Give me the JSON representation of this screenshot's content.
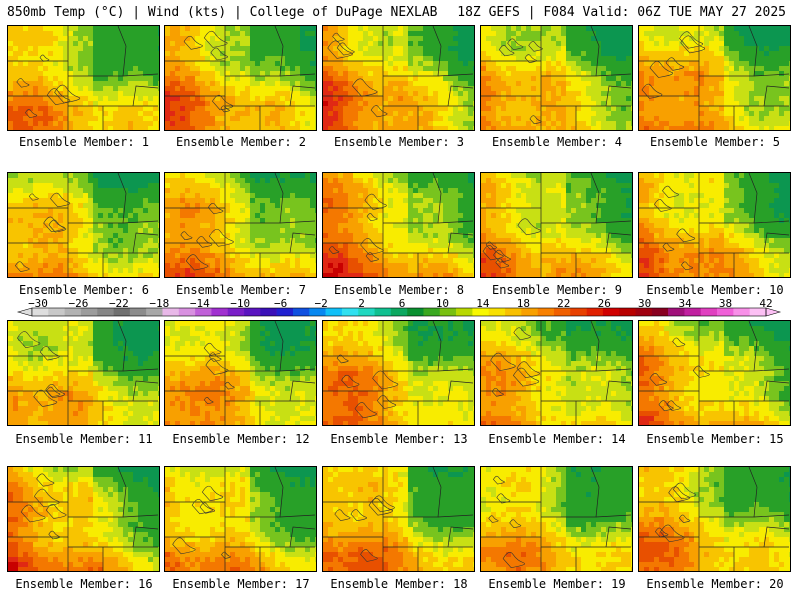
{
  "header": {
    "left": "850mb Temp (°C) | Wind (kts) | College of DuPage NEXLAB",
    "right": "18Z GEFS | F084 Valid: 06Z TUE MAY 27 2025"
  },
  "members": [
    {
      "label": "Ensemble Member: 1"
    },
    {
      "label": "Ensemble Member: 2"
    },
    {
      "label": "Ensemble Member: 3"
    },
    {
      "label": "Ensemble Member: 4"
    },
    {
      "label": "Ensemble Member: 5"
    },
    {
      "label": "Ensemble Member: 6"
    },
    {
      "label": "Ensemble Member: 7"
    },
    {
      "label": "Ensemble Member: 8"
    },
    {
      "label": "Ensemble Member: 9"
    },
    {
      "label": "Ensemble Member: 10"
    },
    {
      "label": "Ensemble Member: 11"
    },
    {
      "label": "Ensemble Member: 12"
    },
    {
      "label": "Ensemble Member: 13"
    },
    {
      "label": "Ensemble Member: 14"
    },
    {
      "label": "Ensemble Member: 15"
    },
    {
      "label": "Ensemble Member: 16"
    },
    {
      "label": "Ensemble Member: 17"
    },
    {
      "label": "Ensemble Member: 18"
    },
    {
      "label": "Ensemble Member: 19"
    },
    {
      "label": "Ensemble Member: 20"
    }
  ],
  "colorbar": {
    "labels": [
      "−30",
      "−26",
      "−22",
      "−18",
      "−14",
      "−10",
      "−6",
      "−2",
      "2",
      "6",
      "10",
      "14",
      "18",
      "22",
      "26",
      "30",
      "34",
      "38",
      "42"
    ],
    "colors": [
      "#dedede",
      "#c8c8c8",
      "#b2b2b2",
      "#9c9c9c",
      "#868686",
      "#707070",
      "#8c8c8c",
      "#a8a8a8",
      "#e8b8e8",
      "#d890e0",
      "#c060d8",
      "#a030d0",
      "#7a1ec8",
      "#5a14c0",
      "#3a10b8",
      "#2020d0",
      "#1050e0",
      "#0888f0",
      "#10c0f8",
      "#30e0f0",
      "#20d8c0",
      "#10c090",
      "#0ca860",
      "#0a9030",
      "#3aa820",
      "#78c010",
      "#b8d800",
      "#f8f800",
      "#f8e000",
      "#f8c000",
      "#f8a000",
      "#f88000",
      "#f06000",
      "#e84000",
      "#e02000",
      "#d00000",
      "#b80000",
      "#a00010",
      "#880020",
      "#a0107a",
      "#c020a0",
      "#e040c0",
      "#f060d8",
      "#f890e8",
      "#fcc0f4"
    ]
  }
}
